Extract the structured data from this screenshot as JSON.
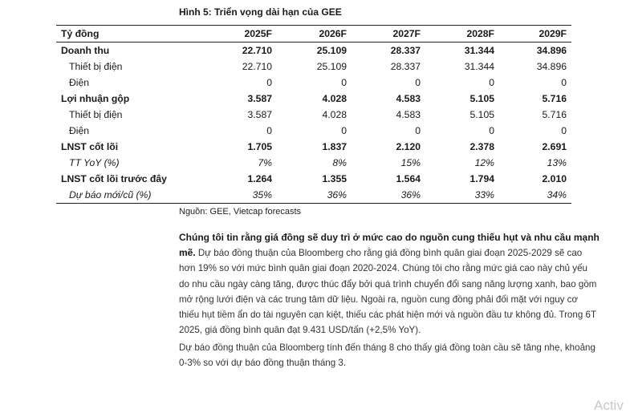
{
  "figure_title": "Hình 5: Triển vọng dài hạn của GEE",
  "table": {
    "unit_label": "Tỷ đồng",
    "columns": [
      "2025F",
      "2026F",
      "2027F",
      "2028F",
      "2029F"
    ],
    "rows": [
      {
        "label": "Doanh thu",
        "style": "bold",
        "values": [
          "22.710",
          "25.109",
          "28.337",
          "31.344",
          "34.896"
        ]
      },
      {
        "label": "Thiết bị điện",
        "style": "sub",
        "values": [
          "22.710",
          "25.109",
          "28.337",
          "31.344",
          "34.896"
        ]
      },
      {
        "label": "Điện",
        "style": "sub",
        "values": [
          "0",
          "0",
          "0",
          "0",
          "0"
        ]
      },
      {
        "label": "Lợi nhuận gộp",
        "style": "bold",
        "values": [
          "3.587",
          "4.028",
          "4.583",
          "5.105",
          "5.716"
        ]
      },
      {
        "label": "Thiết bị điện",
        "style": "sub",
        "values": [
          "3.587",
          "4.028",
          "4.583",
          "5.105",
          "5.716"
        ]
      },
      {
        "label": "Điện",
        "style": "sub",
        "values": [
          "0",
          "0",
          "0",
          "0",
          "0"
        ]
      },
      {
        "label": "LNST cốt lõi",
        "style": "bold",
        "values": [
          "1.705",
          "1.837",
          "2.120",
          "2.378",
          "2.691"
        ]
      },
      {
        "label": "TT YoY (%)",
        "style": "ital",
        "values": [
          "7%",
          "8%",
          "15%",
          "12%",
          "13%"
        ]
      },
      {
        "label": "LNST cốt lõi trước đây",
        "style": "bold",
        "values": [
          "1.264",
          "1.355",
          "1.564",
          "1.794",
          "2.010"
        ]
      },
      {
        "label": "Dự báo mới/cũ (%)",
        "style": "ital",
        "values": [
          "35%",
          "36%",
          "36%",
          "33%",
          "34%"
        ]
      }
    ]
  },
  "source": "Nguồn: GEE, Vietcap forecasts",
  "paragraph1": {
    "bold_lead": "Chúng tôi tin rằng giá đồng sẽ duy trì ở mức cao do nguồn cung thiếu hụt và nhu cầu mạnh mẽ.",
    "body": " Dự báo đồng thuận của Bloomberg cho rằng giá đồng bình quân giai đoạn 2025-2029 sẽ cao hơn 19% so với mức bình quân giai đoạn 2020-2024. Chúng tôi cho rằng mức giá cao này chủ yếu do nhu cầu ngày càng tăng, được thúc đẩy bởi quá trình chuyển đổi sang năng lượng xanh, bao gồm mở rộng lưới điện và các trung tâm dữ liệu. Ngoài ra, nguồn cung đồng phải đối mặt với nguy cơ thiếu hụt tiềm ẩn do tài nguyên cạn kiệt, thiếu các phát hiện mới và nguồn đầu tư không đủ. Trong 6T 2025, giá đồng bình quân đạt 9.431 USD/tấn (+2,5% YoY)."
  },
  "paragraph2": "Dự báo đồng thuận của Bloomberg tính đến tháng 8 cho thấy giá đồng toàn cầu sẽ tăng nhẹ, khoảng 0-3% so với dự báo đồng thuận tháng 3.",
  "watermark": "Activ"
}
